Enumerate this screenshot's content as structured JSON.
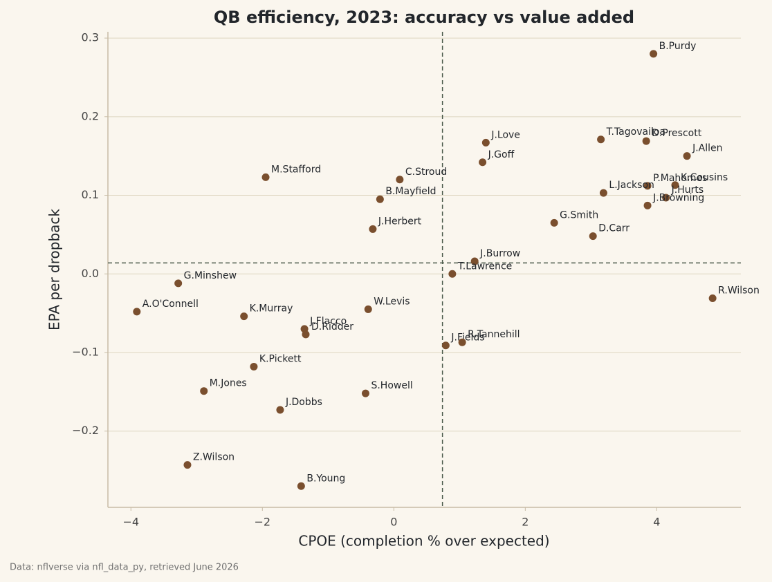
{
  "chart_data": {
    "type": "scatter",
    "title": "QB efficiency, 2023: accuracy vs value added",
    "x_label": "CPOE  (completion % over expected)",
    "y_label": "EPA per dropback",
    "source": "Data: nflverse via nfl_data_py, retrieved June 2026",
    "color": "#7a4f2e",
    "grid": true,
    "xlim": [
      -4.35,
      5.28
    ],
    "ylim": [
      -0.297,
      0.308
    ],
    "xticks": [
      {
        "value": -4,
        "label": "−4"
      },
      {
        "value": -2,
        "label": "−2"
      },
      0,
      2,
      4
    ],
    "yticks": [
      {
        "value": -0.2,
        "label": "−0.2"
      },
      {
        "value": -0.1,
        "label": "−0.1"
      },
      {
        "value": 0,
        "label": "0.0"
      },
      0.1,
      0.2,
      0.3
    ],
    "reference_lines": {
      "x": 0.74,
      "y": 0.014
    },
    "labels": [
      "B.Purdy",
      "J.Love",
      "J.Goff",
      "T.Tagovailoa",
      "D.Prescott",
      "J.Allen",
      "P.Mahomes",
      "K.Cousins",
      "J.Hurts",
      "J.Browning",
      "L.Jackson",
      "G.Smith",
      "D.Carr",
      "M.Stafford",
      "C.Stroud",
      "B.Mayfield",
      "J.Herbert",
      "J.Burrow",
      "T.Lawrence",
      "R.Wilson",
      "G.Minshew",
      "A.O'Connell",
      "K.Murray",
      "J.Flacco",
      "D.Ridder",
      "W.Levis",
      "J.Fields",
      "R.Tannehill",
      "K.Pickett",
      "M.Jones",
      "S.Howell",
      "J.Dobbs",
      "Z.Wilson",
      "B.Young"
    ],
    "x": [
      3.95,
      1.4,
      1.35,
      3.15,
      3.84,
      4.46,
      3.86,
      4.28,
      4.14,
      3.86,
      3.19,
      2.44,
      3.03,
      -1.95,
      0.09,
      -0.21,
      -0.32,
      1.23,
      0.89,
      4.85,
      -3.28,
      -3.91,
      -2.28,
      -1.36,
      -1.34,
      -0.39,
      0.79,
      1.04,
      -2.13,
      -2.89,
      -0.43,
      -1.73,
      -3.14,
      -1.41
    ],
    "values": [
      0.28,
      0.167,
      0.142,
      0.171,
      0.169,
      0.15,
      0.112,
      0.113,
      0.097,
      0.087,
      0.103,
      0.065,
      0.048,
      0.123,
      0.12,
      0.095,
      0.057,
      0.016,
      0.0,
      -0.031,
      -0.012,
      -0.048,
      -0.054,
      -0.07,
      -0.077,
      -0.045,
      -0.091,
      -0.087,
      -0.118,
      -0.149,
      -0.152,
      -0.173,
      -0.243,
      -0.27
    ]
  }
}
